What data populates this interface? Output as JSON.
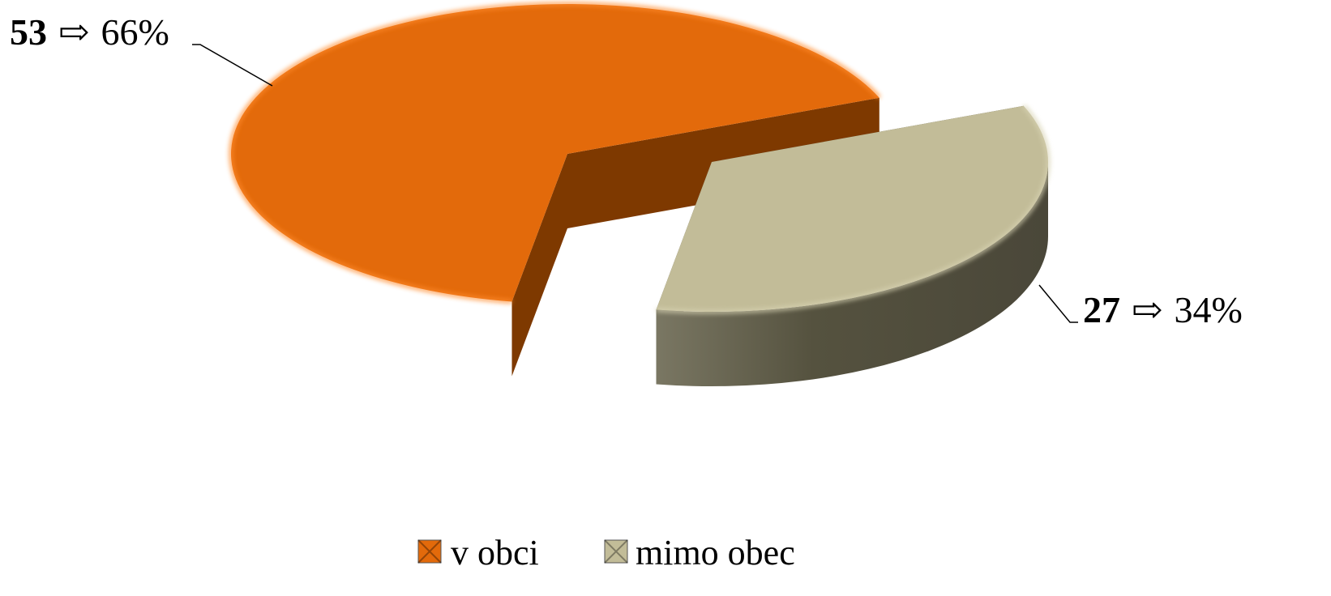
{
  "chart_data": {
    "type": "pie",
    "style": "3d-exploded",
    "categories": [
      "v obci",
      "mimo obec"
    ],
    "values": [
      53,
      27
    ],
    "percent_labels": [
      "66%",
      "34%"
    ],
    "arrow_symbol": "⇨",
    "colors": {
      "v obci": {
        "top": "#E36A0B",
        "side_light": "#C45A08",
        "side_dark": "#7E3900",
        "rim": "#FF8A2A"
      },
      "mimo obec": {
        "top": "#C2BC98",
        "side_light": "#6E6B58",
        "side_dark": "#4E4B3D",
        "rim": "#D8D3B3"
      }
    },
    "legend": {
      "position": "bottom",
      "items": [
        {
          "label": "v obci",
          "color": "#E36A0B"
        },
        {
          "label": "mimo obec",
          "color": "#C2BC98"
        }
      ]
    }
  }
}
